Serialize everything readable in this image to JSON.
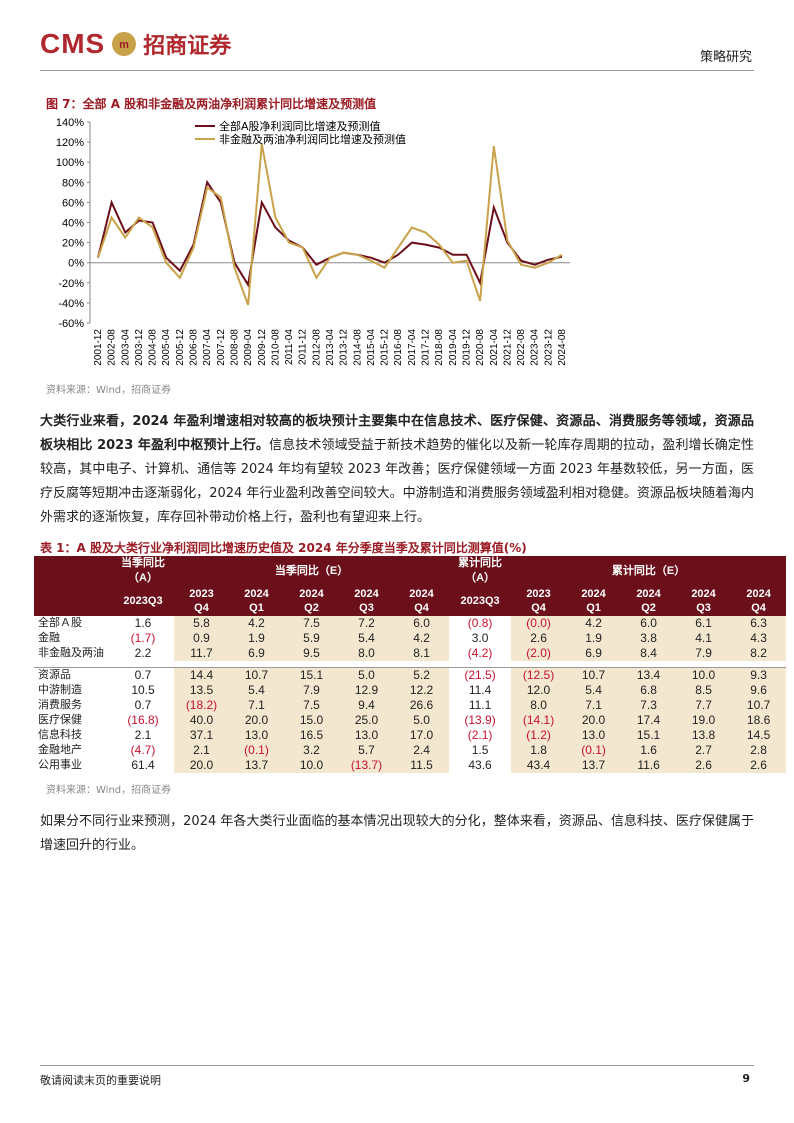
{
  "header": {
    "brand": "CMS",
    "brand_cn": "招商证券",
    "section": "策略研究"
  },
  "figure_caption": "图 7：全部 A 股和非金融及两油净利润累计同比增速及预测值",
  "chart_data": {
    "type": "line",
    "categories": [
      "2001-12",
      "2002-08",
      "2003-04",
      "2003-12",
      "2004-08",
      "2005-04",
      "2005-12",
      "2006-08",
      "2007-04",
      "2007-12",
      "2008-08",
      "2009-04",
      "2009-12",
      "2010-08",
      "2011-04",
      "2011-12",
      "2012-08",
      "2013-04",
      "2013-12",
      "2014-08",
      "2015-04",
      "2015-12",
      "2016-08",
      "2017-04",
      "2017-12",
      "2018-08",
      "2019-04",
      "2019-12",
      "2020-08",
      "2021-04",
      "2021-12",
      "2022-08",
      "2023-04",
      "2023-12",
      "2024-08"
    ],
    "series": [
      {
        "name": "全部A股净利润同比增速及预测值",
        "color": "#6b0f1a",
        "values": [
          5,
          60,
          30,
          42,
          40,
          5,
          -8,
          18,
          80,
          60,
          0,
          -22,
          60,
          35,
          22,
          15,
          -2,
          5,
          10,
          8,
          5,
          0,
          8,
          20,
          18,
          15,
          8,
          8,
          -20,
          55,
          20,
          2,
          -2,
          3,
          6
        ]
      },
      {
        "name": "非金融及两油净利润同比增速及预测值",
        "color": "#c9a24a",
        "values": [
          5,
          45,
          25,
          45,
          35,
          0,
          -15,
          15,
          75,
          65,
          -5,
          -42,
          118,
          45,
          20,
          15,
          -15,
          5,
          10,
          8,
          2,
          -5,
          15,
          35,
          30,
          18,
          0,
          2,
          -38,
          116,
          22,
          -2,
          -5,
          0,
          8
        ]
      }
    ],
    "ylim": [
      -60,
      140
    ],
    "yticks": [
      {
        "value": -60,
        "label": "-60%"
      },
      {
        "value": -40,
        "label": "-40%"
      },
      {
        "value": -20,
        "label": "-20%"
      },
      {
        "value": 0,
        "label": "0%"
      },
      {
        "value": 20,
        "label": "20%"
      },
      {
        "value": 40,
        "label": "40%"
      },
      {
        "value": 60,
        "label": "60%"
      },
      {
        "value": 80,
        "label": "80%"
      },
      {
        "value": 100,
        "label": "100%"
      },
      {
        "value": 120,
        "label": "120%"
      },
      {
        "value": 140,
        "label": "140%"
      }
    ],
    "legend": "top-left"
  },
  "figure_source": "资料来源：Wind，招商证券",
  "paragraph1": {
    "bold": "大类行业来看，2024 年盈利增速相对较高的板块预计主要集中在信息技术、医疗保健、资源品、消费服务等领域，资源品板块相比 2023 年盈利中枢预计上行。",
    "text": "信息技术领域受益于新技术趋势的催化以及新一轮库存周期的拉动，盈利增长确定性较高，其中电子、计算机、通信等 2024 年均有望较 2023 年改善；医疗保健领域一方面 2023 年基数较低，另一方面，医疗反腐等短期冲击逐渐弱化，2024 年行业盈利改善空间较大。中游制造和消费服务领域盈利相对稳健。资源品板块随着海内外需求的逐渐恢复，库存回补带动价格上行，盈利也有望迎来上行。"
  },
  "table": {
    "caption": "表 1：A 股及大类行业净利润同比增速历史值及 2024 年分季度当季及累计同比测算值(%)",
    "groups": [
      "当季同比（A）",
      "当季同比（E）",
      "累计同比（A）",
      "累计同比（E）"
    ],
    "periods": [
      [
        "2023Q3"
      ],
      [
        "2023",
        "Q4"
      ],
      [
        "2024",
        "Q1"
      ],
      [
        "2024",
        "Q2"
      ],
      [
        "2024",
        "Q3"
      ],
      [
        "2024",
        "Q4"
      ],
      [
        "2023Q3"
      ],
      [
        "2023",
        "Q4"
      ],
      [
        "2024",
        "Q1"
      ],
      [
        "2024",
        "Q2"
      ],
      [
        "2024",
        "Q3"
      ],
      [
        "2024",
        "Q4"
      ]
    ],
    "sections": [
      [
        [
          "全部Ａ股",
          "1.6",
          "5.8",
          "4.2",
          "7.5",
          "7.2",
          "6.0",
          "(0.8)",
          "(0.0)",
          "4.2",
          "6.0",
          "6.1",
          "6.3"
        ],
        [
          "金融",
          "(1.7)",
          "0.9",
          "1.9",
          "5.9",
          "5.4",
          "4.2",
          "3.0",
          "2.6",
          "1.9",
          "3.8",
          "4.1",
          "4.3"
        ],
        [
          "非金融及两油",
          "2.2",
          "11.7",
          "6.9",
          "9.5",
          "8.0",
          "8.1",
          "(4.2)",
          "(2.0)",
          "6.9",
          "8.4",
          "7.9",
          "8.2"
        ]
      ],
      [
        [
          "资源品",
          "0.7",
          "14.4",
          "10.7",
          "15.1",
          "5.0",
          "5.2",
          "(21.5)",
          "(12.5)",
          "10.7",
          "13.4",
          "10.0",
          "9.3"
        ],
        [
          "中游制造",
          "10.5",
          "13.5",
          "5.4",
          "7.9",
          "12.9",
          "12.2",
          "11.4",
          "12.0",
          "5.4",
          "6.8",
          "8.5",
          "9.6"
        ],
        [
          "消费服务",
          "0.7",
          "(18.2)",
          "7.1",
          "7.5",
          "9.4",
          "26.6",
          "11.1",
          "8.0",
          "7.1",
          "7.3",
          "7.7",
          "10.7"
        ],
        [
          "医疗保健",
          "(16.8)",
          "40.0",
          "20.0",
          "15.0",
          "25.0",
          "5.0",
          "(13.9)",
          "(14.1)",
          "20.0",
          "17.4",
          "19.0",
          "18.6"
        ],
        [
          "信息科技",
          "2.1",
          "37.1",
          "13.0",
          "16.5",
          "13.0",
          "17.0",
          "(2.1)",
          "(1.2)",
          "13.0",
          "15.1",
          "13.8",
          "14.5"
        ],
        [
          "金融地产",
          "(4.7)",
          "2.1",
          "(0.1)",
          "3.2",
          "5.7",
          "2.4",
          "1.5",
          "1.8",
          "(0.1)",
          "1.6",
          "2.7",
          "2.8"
        ],
        [
          "公用事业",
          "61.4",
          "20.0",
          "13.7",
          "10.0",
          "(13.7)",
          "11.5",
          "43.6",
          "43.4",
          "13.7",
          "11.6",
          "2.6",
          "2.6"
        ]
      ]
    ]
  },
  "table_source": "资料来源：Wind，招商证券",
  "paragraph2": "如果分不同行业来预测，2024 年各大类行业面临的基本情况出现较大的分化，整体来看，资源品、信息科技、医疗保健属于增速回升的行业。",
  "footer": {
    "note": "敬请阅读末页的重要说明",
    "page": "9"
  }
}
